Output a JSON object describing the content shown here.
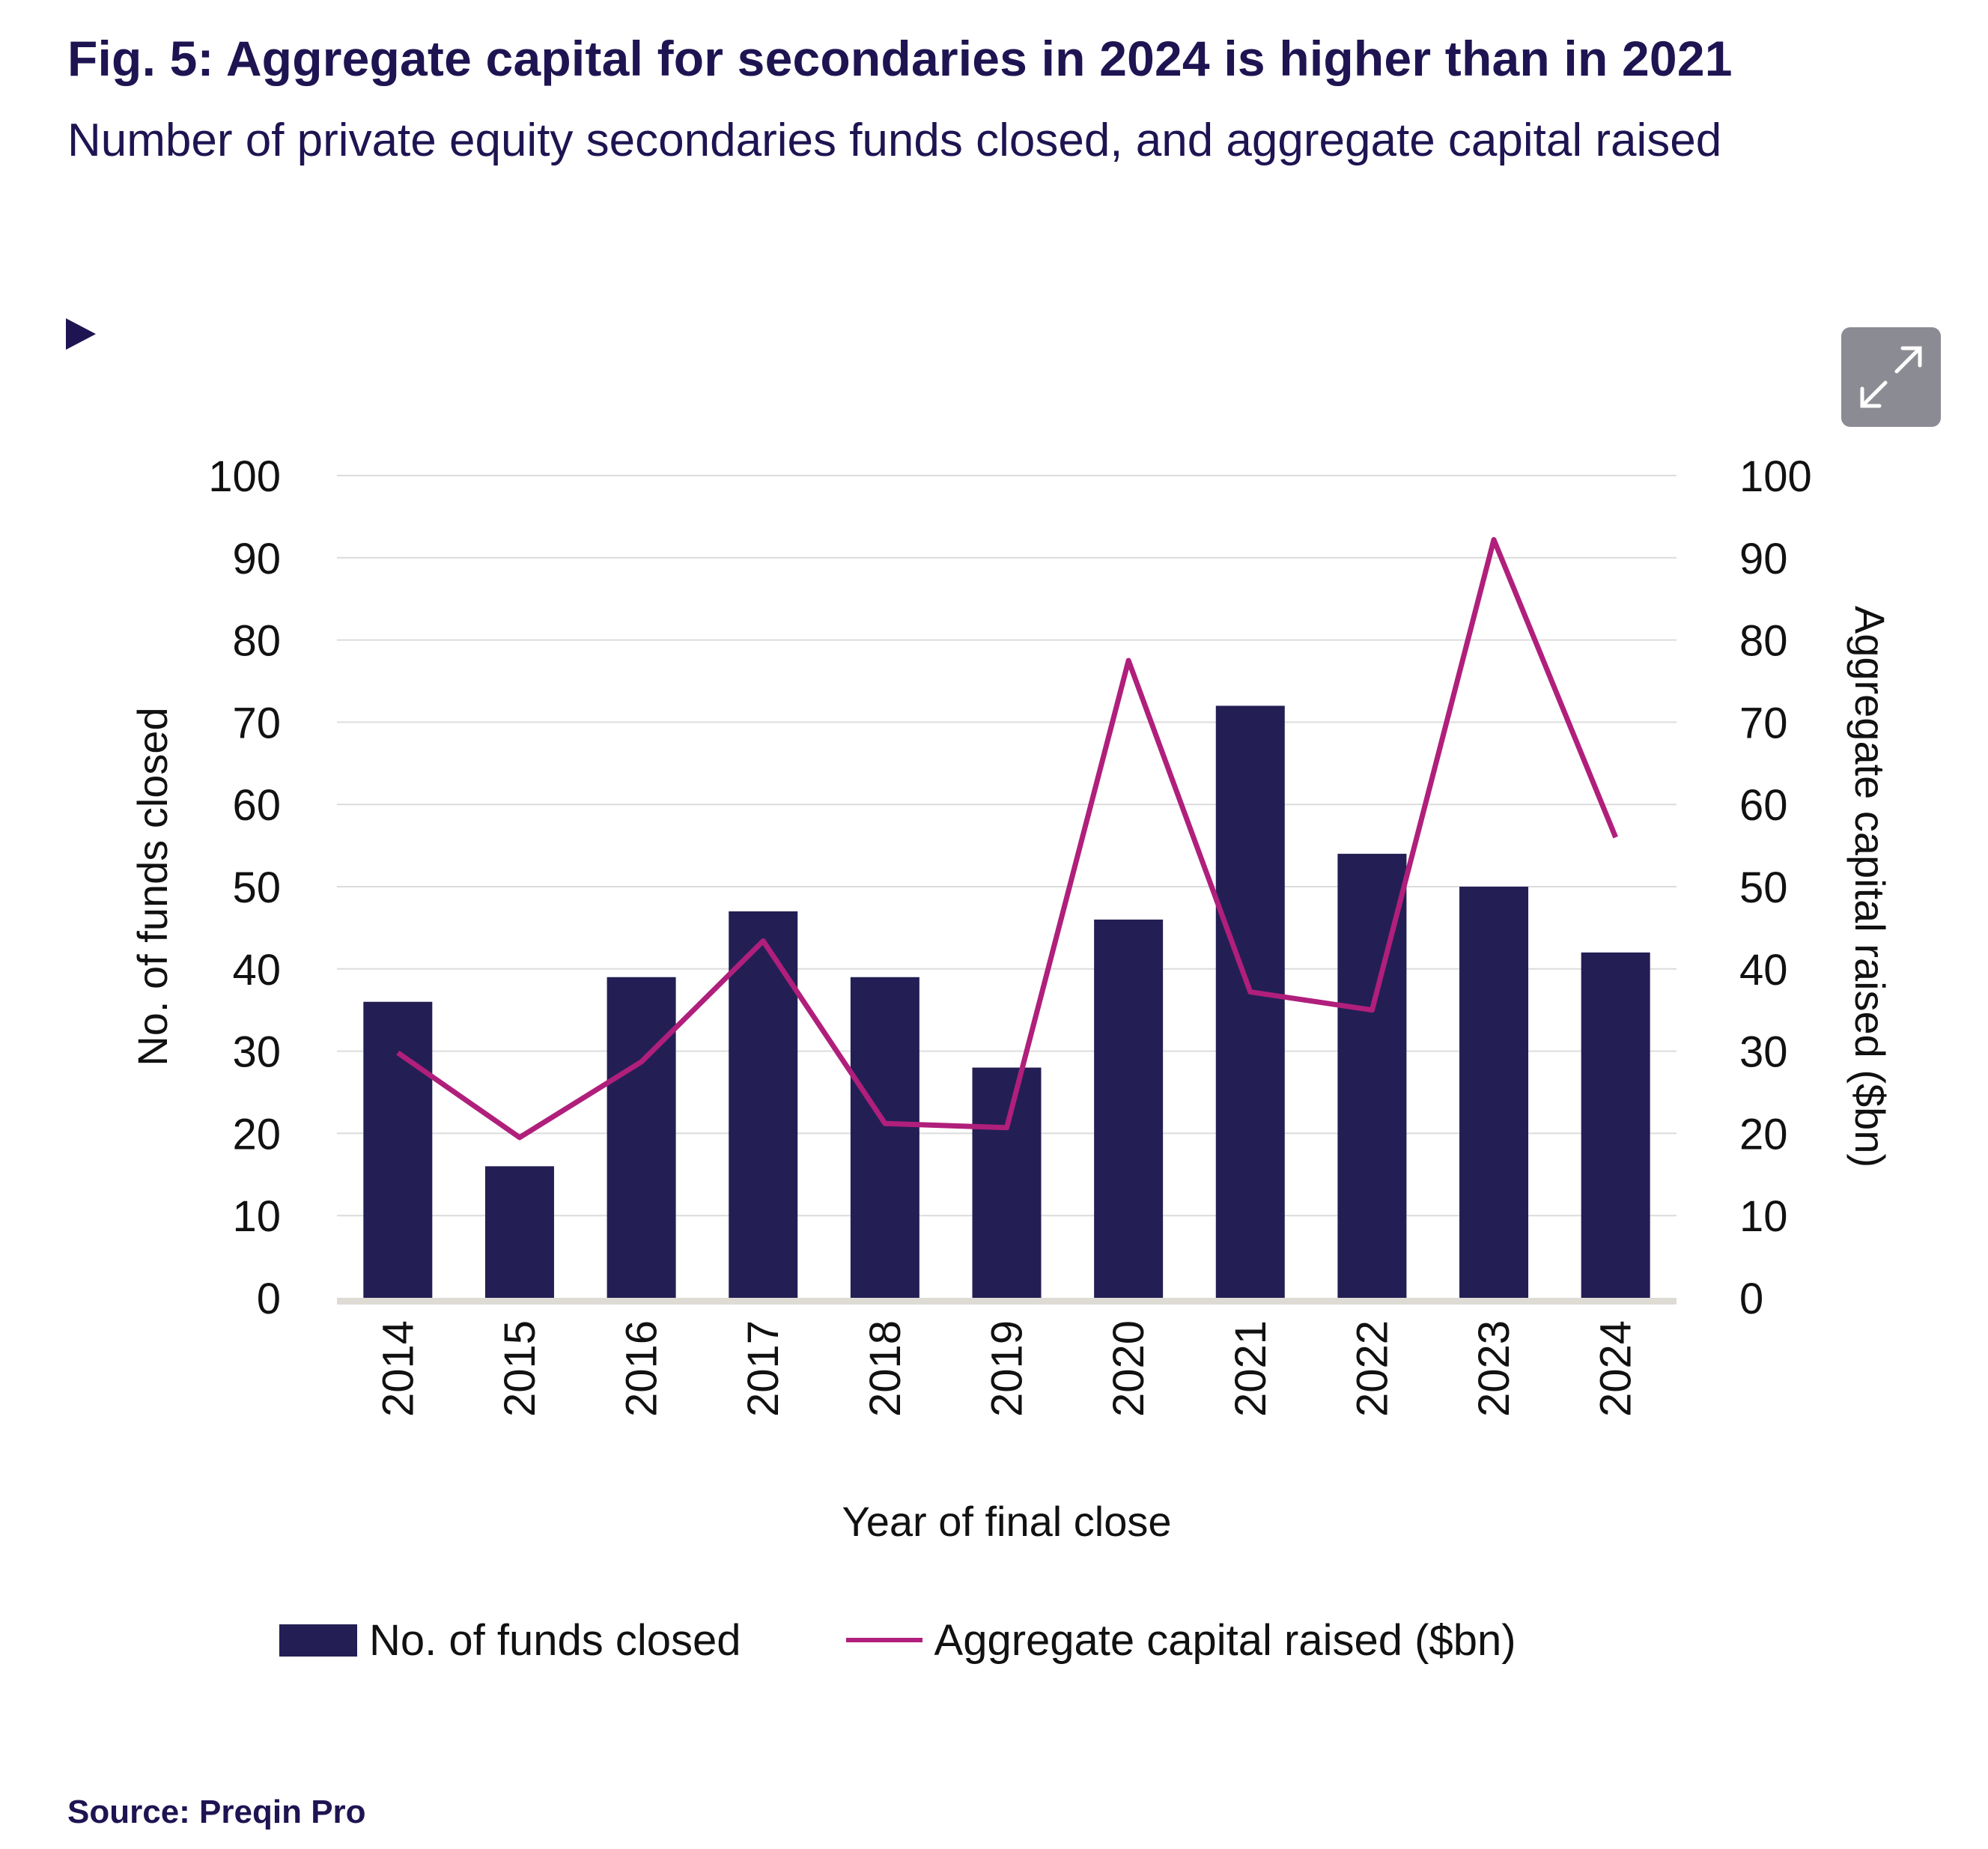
{
  "header": {
    "title": "Fig. 5: Aggregate capital for secondaries in 2024 is higher than in 2021",
    "subtitle": "Number of private equity secondaries funds closed, and aggregate capital raised"
  },
  "controls": {
    "play_icon": "play-triangle-icon",
    "expand_icon": "expand-arrows-icon"
  },
  "colors": {
    "text": "#1f1452",
    "bar": "#231f54",
    "line": "#b01f7b",
    "grid": "#dcdcdc",
    "baseline": "#dedbd5",
    "button": "#8b8b93"
  },
  "chart_data": {
    "type": "bar",
    "title": "Fig. 5: Aggregate capital for secondaries in 2024 is higher than in 2021",
    "subtitle": "Number of private equity secondaries funds closed, and aggregate capital raised",
    "xlabel": "Year of final close",
    "ylabel": "No. of funds closed",
    "y2label": "Aggregate capital raised ($bn)",
    "ylim": [
      0,
      100
    ],
    "y2lim": [
      0,
      100
    ],
    "yticks": [
      0,
      10,
      20,
      30,
      40,
      50,
      60,
      70,
      80,
      90,
      100
    ],
    "y2ticks": [
      0,
      10,
      20,
      30,
      40,
      50,
      60,
      70,
      80,
      90,
      100
    ],
    "grid": true,
    "legend_position": "bottom",
    "categories": [
      "2014",
      "2015",
      "2016",
      "2017",
      "2018",
      "2019",
      "2020",
      "2021",
      "2022",
      "2023",
      "2024"
    ],
    "series": [
      {
        "name": "No. of funds closed",
        "type": "bar",
        "axis": "left",
        "values": [
          36,
          16,
          39,
          47,
          39,
          28,
          46,
          72,
          54,
          50,
          42
        ]
      },
      {
        "name": "Aggregate capital raised ($bn)",
        "type": "line",
        "axis": "right",
        "values": [
          29.8,
          19.5,
          28.7,
          43.4,
          21.2,
          20.7,
          77.5,
          37.2,
          35.0,
          92.2,
          56.0
        ]
      }
    ]
  },
  "legend": {
    "bar_label": "No. of funds closed",
    "line_label": "Aggregate capital raised ($bn)"
  },
  "footer": {
    "source": "Source: Preqin Pro"
  }
}
